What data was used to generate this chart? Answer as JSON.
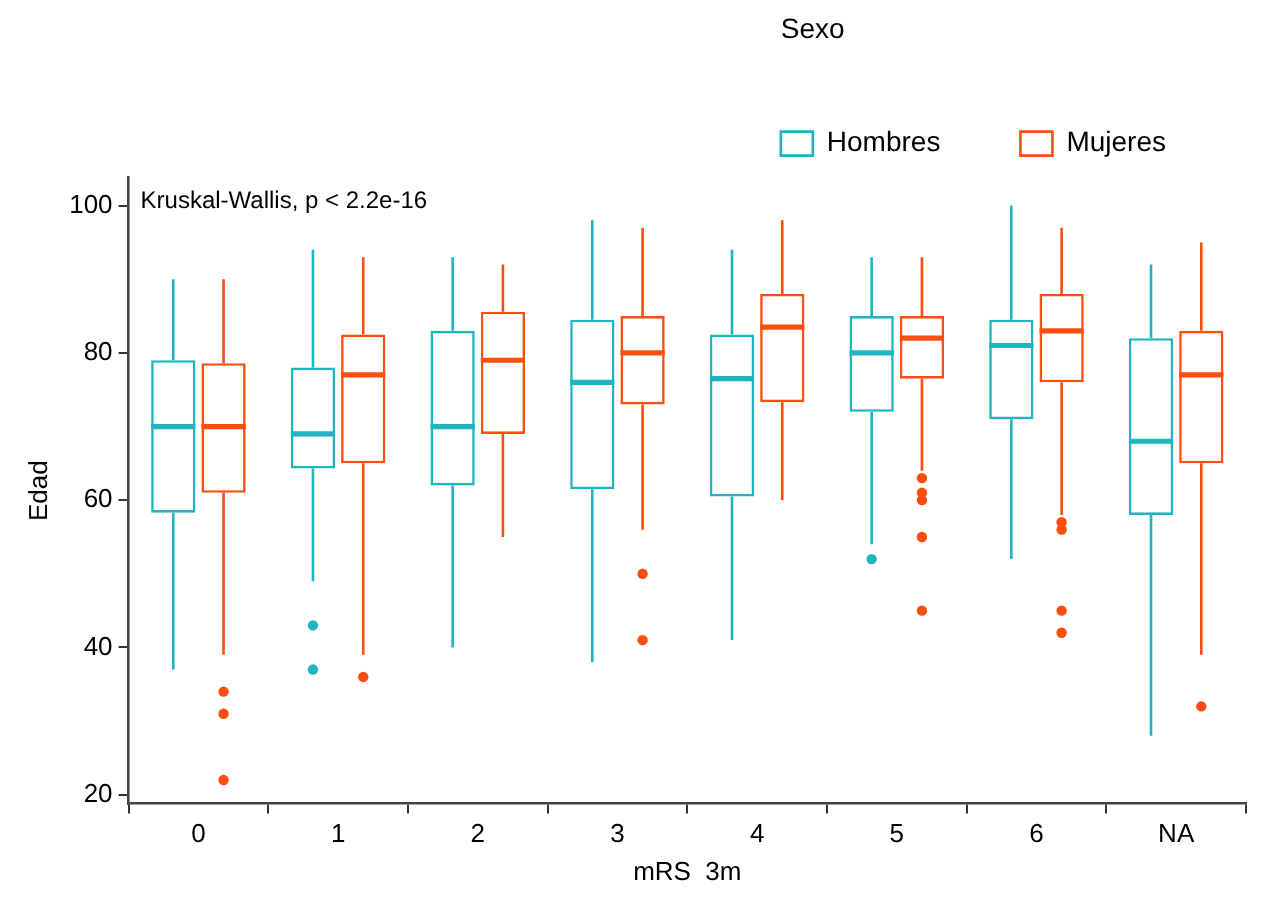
{
  "chart_data": {
    "type": "box",
    "xlabel": "mRS  3m",
    "ylabel": "Edad",
    "legend_title": "Sexo",
    "legend": "top",
    "grid": false,
    "marker": "circle",
    "annotations": [
      "Kruskal-Wallis, p < 2.2e-16"
    ],
    "categories": [
      "0",
      "1",
      "2",
      "3",
      "4",
      "5",
      "6",
      "NA"
    ],
    "ylim": [
      18.8,
      103.8
    ],
    "yticks": [
      20,
      40,
      60,
      80,
      100
    ],
    "series": [
      {
        "name": "Hombres",
        "color": "#1fb5c0",
        "boxes": [
          {
            "low": 37,
            "q1": 58.3,
            "median": 70,
            "q3": 79,
            "high": 90
          },
          {
            "low": 49,
            "q1": 64.3,
            "median": 69,
            "q3": 78,
            "high": 94,
            "outliers": [
              43,
              37
            ]
          },
          {
            "low": 40,
            "q1": 62,
            "median": 70,
            "q3": 83,
            "high": 93
          },
          {
            "low": 38,
            "q1": 61.5,
            "median": 76,
            "q3": 84.5,
            "high": 98
          },
          {
            "low": 41,
            "q1": 60.5,
            "median": 76.5,
            "q3": 82.5,
            "high": 94
          },
          {
            "low": 54,
            "q1": 72,
            "median": 80,
            "q3": 85,
            "high": 93,
            "outliers": [
              52
            ]
          },
          {
            "low": 52,
            "q1": 71,
            "median": 81,
            "q3": 84.5,
            "high": 100
          },
          {
            "low": 28,
            "q1": 58,
            "median": 68,
            "q3": 82,
            "high": 92
          }
        ]
      },
      {
        "name": "Mujeres",
        "color": "#fc4e0e",
        "boxes": [
          {
            "low": 39,
            "q1": 61,
            "median": 70,
            "q3": 78.6,
            "high": 90,
            "outliers": [
              34,
              31,
              22
            ]
          },
          {
            "low": 39,
            "q1": 65,
            "median": 77,
            "q3": 82.5,
            "high": 93,
            "outliers": [
              36
            ]
          },
          {
            "low": 55,
            "q1": 69,
            "median": 79,
            "q3": 85.6,
            "high": 92
          },
          {
            "low": 56,
            "q1": 73,
            "median": 80,
            "q3": 85,
            "high": 97,
            "outliers": [
              50,
              41
            ]
          },
          {
            "low": 60,
            "q1": 73.3,
            "median": 83.5,
            "q3": 88,
            "high": 98
          },
          {
            "low": 64,
            "q1": 76.5,
            "median": 82,
            "q3": 85,
            "high": 93,
            "outliers": [
              63,
              61,
              60,
              55,
              45
            ]
          },
          {
            "low": 58,
            "q1": 76,
            "median": 83,
            "q3": 88,
            "high": 97,
            "outliers": [
              57,
              56,
              45,
              42
            ]
          },
          {
            "low": 39,
            "q1": 65,
            "median": 77,
            "q3": 83,
            "high": 95,
            "outliers": [
              32
            ]
          }
        ]
      }
    ]
  }
}
